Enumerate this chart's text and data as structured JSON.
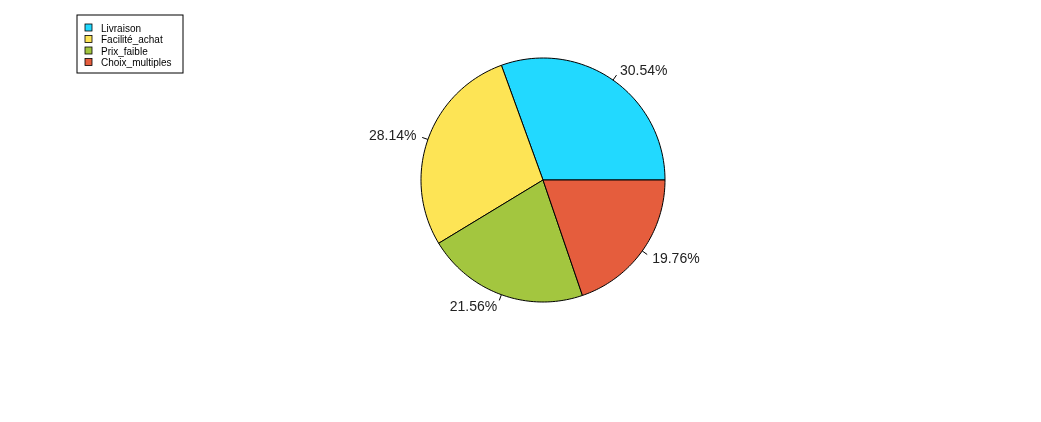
{
  "chart_data": {
    "type": "pie",
    "categories": [
      "Livraison",
      "Facilité_achat",
      "Prix_faible",
      "Choix_multiples"
    ],
    "values": [
      30.54,
      28.14,
      21.56,
      19.76
    ],
    "colors": [
      "#22d9ff",
      "#fde455",
      "#a3c63f",
      "#e55d3d"
    ],
    "value_labels": [
      "30.54%",
      "28.14%",
      "21.56%",
      "19.76%"
    ],
    "legend": "top left"
  }
}
